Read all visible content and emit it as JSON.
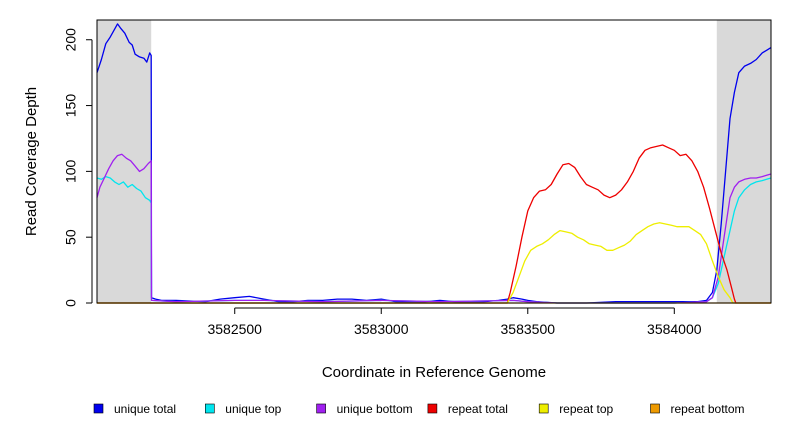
{
  "chart_data": {
    "type": "line",
    "title": "",
    "xlabel": "Coordinate in Reference Genome",
    "ylabel": "Read Coverage Depth",
    "xlim": [
      3582030,
      3584330
    ],
    "ylim": [
      0,
      215
    ],
    "x_ticks": [
      3582500,
      3583000,
      3583500,
      3584000
    ],
    "y_ticks": [
      0,
      50,
      100,
      150,
      200
    ],
    "shaded_regions": [
      {
        "from": 3582030,
        "to": 3582215,
        "color": "#d9d9d9"
      },
      {
        "from": 3584145,
        "to": 3584330,
        "color": "#d9d9d9"
      }
    ],
    "legend_position": "bottom",
    "series": [
      {
        "name": "unique total",
        "color": "#0000ee",
        "points": [
          [
            3582030,
            175
          ],
          [
            3582045,
            185
          ],
          [
            3582060,
            197
          ],
          [
            3582075,
            202
          ],
          [
            3582090,
            208
          ],
          [
            3582100,
            212
          ],
          [
            3582110,
            209
          ],
          [
            3582125,
            205
          ],
          [
            3582140,
            198
          ],
          [
            3582150,
            196
          ],
          [
            3582160,
            189
          ],
          [
            3582175,
            187
          ],
          [
            3582190,
            186
          ],
          [
            3582200,
            183
          ],
          [
            3582210,
            190
          ],
          [
            3582215,
            188
          ],
          [
            3582216,
            4
          ],
          [
            3582230,
            3
          ],
          [
            3582250,
            2
          ],
          [
            3582300,
            2
          ],
          [
            3582400,
            1
          ],
          [
            3582450,
            3
          ],
          [
            3582500,
            4
          ],
          [
            3582550,
            5
          ],
          [
            3582600,
            3
          ],
          [
            3582650,
            1
          ],
          [
            3582700,
            1
          ],
          [
            3582750,
            2
          ],
          [
            3582800,
            2
          ],
          [
            3582850,
            3
          ],
          [
            3582900,
            3
          ],
          [
            3582950,
            2
          ],
          [
            3583000,
            3
          ],
          [
            3583050,
            1
          ],
          [
            3583100,
            1
          ],
          [
            3583150,
            1
          ],
          [
            3583200,
            2
          ],
          [
            3583250,
            1
          ],
          [
            3583300,
            1
          ],
          [
            3583350,
            1
          ],
          [
            3583400,
            2
          ],
          [
            3583430,
            3
          ],
          [
            3583450,
            4
          ],
          [
            3583480,
            3
          ],
          [
            3583500,
            2
          ],
          [
            3583530,
            1
          ],
          [
            3583600,
            0
          ],
          [
            3583700,
            0
          ],
          [
            3583800,
            1
          ],
          [
            3583900,
            1
          ],
          [
            3584000,
            1
          ],
          [
            3584080,
            1
          ],
          [
            3584110,
            2
          ],
          [
            3584130,
            8
          ],
          [
            3584145,
            25
          ],
          [
            3584160,
            60
          ],
          [
            3584175,
            100
          ],
          [
            3584190,
            140
          ],
          [
            3584205,
            160
          ],
          [
            3584220,
            175
          ],
          [
            3584240,
            180
          ],
          [
            3584260,
            182
          ],
          [
            3584280,
            185
          ],
          [
            3584300,
            190
          ],
          [
            3584315,
            192
          ],
          [
            3584330,
            194
          ]
        ]
      },
      {
        "name": "unique top",
        "color": "#00e5ee",
        "points": [
          [
            3582030,
            95
          ],
          [
            3582045,
            94
          ],
          [
            3582060,
            96
          ],
          [
            3582075,
            95
          ],
          [
            3582090,
            92
          ],
          [
            3582105,
            90
          ],
          [
            3582120,
            92
          ],
          [
            3582135,
            88
          ],
          [
            3582150,
            90
          ],
          [
            3582165,
            87
          ],
          [
            3582180,
            85
          ],
          [
            3582195,
            80
          ],
          [
            3582210,
            78
          ],
          [
            3582215,
            76
          ],
          [
            3582216,
            2
          ],
          [
            3582300,
            1
          ],
          [
            3582500,
            2
          ],
          [
            3582600,
            2
          ],
          [
            3582800,
            1
          ],
          [
            3583000,
            2
          ],
          [
            3583200,
            1
          ],
          [
            3583450,
            2
          ],
          [
            3583500,
            1
          ],
          [
            3583600,
            0
          ],
          [
            3584000,
            0
          ],
          [
            3584110,
            1
          ],
          [
            3584130,
            4
          ],
          [
            3584150,
            15
          ],
          [
            3584170,
            35
          ],
          [
            3584190,
            55
          ],
          [
            3584205,
            70
          ],
          [
            3584220,
            80
          ],
          [
            3584240,
            86
          ],
          [
            3584260,
            90
          ],
          [
            3584280,
            92
          ],
          [
            3584300,
            93
          ],
          [
            3584315,
            94
          ],
          [
            3584330,
            95
          ]
        ]
      },
      {
        "name": "unique bottom",
        "color": "#a020f0",
        "points": [
          [
            3582030,
            80
          ],
          [
            3582040,
            88
          ],
          [
            3582055,
            95
          ],
          [
            3582070,
            102
          ],
          [
            3582085,
            108
          ],
          [
            3582100,
            112
          ],
          [
            3582115,
            113
          ],
          [
            3582130,
            110
          ],
          [
            3582145,
            108
          ],
          [
            3582160,
            104
          ],
          [
            3582175,
            100
          ],
          [
            3582190,
            102
          ],
          [
            3582205,
            106
          ],
          [
            3582215,
            108
          ],
          [
            3582216,
            2
          ],
          [
            3582300,
            1
          ],
          [
            3582500,
            2
          ],
          [
            3582600,
            2
          ],
          [
            3582800,
            1
          ],
          [
            3583000,
            2
          ],
          [
            3583200,
            1
          ],
          [
            3583450,
            2
          ],
          [
            3583500,
            1
          ],
          [
            3583600,
            0
          ],
          [
            3584000,
            0
          ],
          [
            3584110,
            1
          ],
          [
            3584130,
            4
          ],
          [
            3584150,
            20
          ],
          [
            3584170,
            50
          ],
          [
            3584190,
            80
          ],
          [
            3584205,
            88
          ],
          [
            3584220,
            92
          ],
          [
            3584240,
            94
          ],
          [
            3584260,
            95
          ],
          [
            3584280,
            95
          ],
          [
            3584300,
            96
          ],
          [
            3584315,
            97
          ],
          [
            3584330,
            98
          ]
        ]
      },
      {
        "name": "repeat total",
        "color": "#ee0000",
        "points": [
          [
            3582030,
            0
          ],
          [
            3583430,
            0
          ],
          [
            3583440,
            8
          ],
          [
            3583460,
            28
          ],
          [
            3583480,
            50
          ],
          [
            3583500,
            70
          ],
          [
            3583520,
            80
          ],
          [
            3583540,
            85
          ],
          [
            3583560,
            86
          ],
          [
            3583580,
            90
          ],
          [
            3583600,
            98
          ],
          [
            3583620,
            105
          ],
          [
            3583640,
            106
          ],
          [
            3583660,
            103
          ],
          [
            3583680,
            96
          ],
          [
            3583700,
            90
          ],
          [
            3583720,
            88
          ],
          [
            3583740,
            86
          ],
          [
            3583760,
            82
          ],
          [
            3583780,
            80
          ],
          [
            3583800,
            82
          ],
          [
            3583820,
            86
          ],
          [
            3583840,
            92
          ],
          [
            3583860,
            100
          ],
          [
            3583880,
            110
          ],
          [
            3583900,
            116
          ],
          [
            3583920,
            118
          ],
          [
            3583940,
            119
          ],
          [
            3583960,
            120
          ],
          [
            3583980,
            118
          ],
          [
            3584000,
            116
          ],
          [
            3584020,
            112
          ],
          [
            3584040,
            113
          ],
          [
            3584060,
            108
          ],
          [
            3584080,
            100
          ],
          [
            3584100,
            88
          ],
          [
            3584120,
            72
          ],
          [
            3584140,
            55
          ],
          [
            3584160,
            38
          ],
          [
            3584180,
            25
          ],
          [
            3584195,
            12
          ],
          [
            3584205,
            3
          ],
          [
            3584210,
            0
          ],
          [
            3584330,
            0
          ]
        ]
      },
      {
        "name": "repeat top",
        "color": "#eeee00",
        "points": [
          [
            3582030,
            0
          ],
          [
            3583430,
            0
          ],
          [
            3583450,
            8
          ],
          [
            3583470,
            20
          ],
          [
            3583490,
            32
          ],
          [
            3583510,
            40
          ],
          [
            3583530,
            43
          ],
          [
            3583550,
            45
          ],
          [
            3583570,
            48
          ],
          [
            3583590,
            52
          ],
          [
            3583610,
            55
          ],
          [
            3583630,
            54
          ],
          [
            3583650,
            53
          ],
          [
            3583670,
            50
          ],
          [
            3583690,
            48
          ],
          [
            3583710,
            45
          ],
          [
            3583730,
            44
          ],
          [
            3583750,
            43
          ],
          [
            3583770,
            40
          ],
          [
            3583790,
            40
          ],
          [
            3583810,
            42
          ],
          [
            3583830,
            44
          ],
          [
            3583850,
            47
          ],
          [
            3583870,
            52
          ],
          [
            3583890,
            55
          ],
          [
            3583910,
            58
          ],
          [
            3583930,
            60
          ],
          [
            3583950,
            61
          ],
          [
            3583970,
            60
          ],
          [
            3583990,
            59
          ],
          [
            3584010,
            58
          ],
          [
            3584030,
            58
          ],
          [
            3584050,
            58
          ],
          [
            3584070,
            55
          ],
          [
            3584090,
            52
          ],
          [
            3584110,
            45
          ],
          [
            3584130,
            32
          ],
          [
            3584150,
            20
          ],
          [
            3584170,
            10
          ],
          [
            3584190,
            4
          ],
          [
            3584200,
            0
          ],
          [
            3584330,
            0
          ]
        ]
      },
      {
        "name": "repeat bottom",
        "color": "#ee9a00",
        "points": [
          [
            3582030,
            0
          ],
          [
            3584330,
            0
          ]
        ]
      }
    ]
  }
}
